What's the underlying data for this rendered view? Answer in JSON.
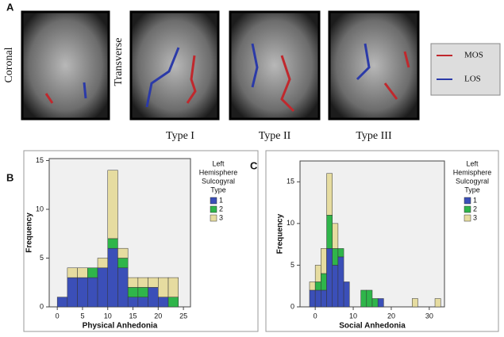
{
  "panel_a": {
    "label": "A",
    "views": [
      "Coronal",
      "Transverse"
    ],
    "types": [
      "Type I",
      "Type II",
      "Type III"
    ],
    "legend": [
      {
        "name": "MOS",
        "color": "#c0282d"
      },
      {
        "name": "LOS",
        "color": "#2b3aa8"
      }
    ]
  },
  "panel_labels": [
    "B",
    "C"
  ],
  "chart_data": [
    {
      "type": "histogram",
      "xlabel": "Physical Anhedonia",
      "ylabel": "Frequency",
      "legend_title": [
        "Left",
        "Hemisphere",
        "Sulcogyral",
        "Type"
      ],
      "bins": [
        0,
        2,
        4,
        6,
        8,
        10,
        12,
        14,
        16,
        18,
        20,
        22,
        24
      ],
      "series": [
        {
          "name": "1",
          "color": "#3b4fb8",
          "values": [
            1,
            3,
            3,
            3,
            4,
            6,
            4,
            1,
            1,
            2,
            1,
            0
          ]
        },
        {
          "name": "2",
          "color": "#2fb54a",
          "values": [
            0,
            0,
            0,
            1,
            0,
            1,
            1,
            1,
            1,
            0,
            0,
            1
          ]
        },
        {
          "name": "3",
          "color": "#e6dca0",
          "values": [
            0,
            1,
            1,
            0,
            1,
            7,
            1,
            1,
            1,
            1,
            2,
            2
          ]
        }
      ],
      "xlim": [
        -1.6,
        26.4
      ],
      "xticks": [
        0,
        5,
        10,
        15,
        20,
        25
      ],
      "ylim": [
        0,
        15.2
      ],
      "yticks": [
        0,
        5,
        10,
        15
      ]
    },
    {
      "type": "histogram",
      "xlabel": "Social Anhedonia",
      "ylabel": "Frequency",
      "legend_title": [
        "Left",
        "Hemisphere",
        "Sulcogyral",
        "Type"
      ],
      "bins": [
        -1.5,
        0,
        1.5,
        3,
        4.5,
        6,
        7.5,
        9,
        10.5,
        12,
        13.5,
        15,
        16.5,
        18,
        19.5,
        21,
        22.5,
        24,
        25.5,
        27,
        28.5,
        30,
        31.5,
        33
      ],
      "series": [
        {
          "name": "1",
          "color": "#3b4fb8",
          "values": [
            2,
            2,
            2,
            7,
            5,
            6,
            3,
            0,
            0,
            0,
            0,
            0,
            1,
            0,
            0,
            0,
            0,
            0,
            0,
            0,
            0,
            0,
            0
          ]
        },
        {
          "name": "2",
          "color": "#2fb54a",
          "values": [
            0,
            1,
            2,
            4,
            2,
            1,
            0,
            0,
            0,
            2,
            2,
            1,
            0,
            0,
            0,
            0,
            0,
            0,
            0,
            0,
            0,
            0,
            0
          ]
        },
        {
          "name": "3",
          "color": "#e6dca0",
          "values": [
            1,
            2,
            3,
            5,
            3,
            0,
            0,
            0,
            0,
            0,
            0,
            0,
            0,
            0,
            0,
            0,
            0,
            0,
            1,
            0,
            0,
            0,
            1
          ]
        }
      ],
      "xlim": [
        -4,
        34
      ],
      "xticks": [
        0,
        10,
        20,
        30
      ],
      "ylim": [
        0,
        17.5
      ],
      "yticks": [
        0,
        5,
        10,
        15
      ]
    }
  ]
}
